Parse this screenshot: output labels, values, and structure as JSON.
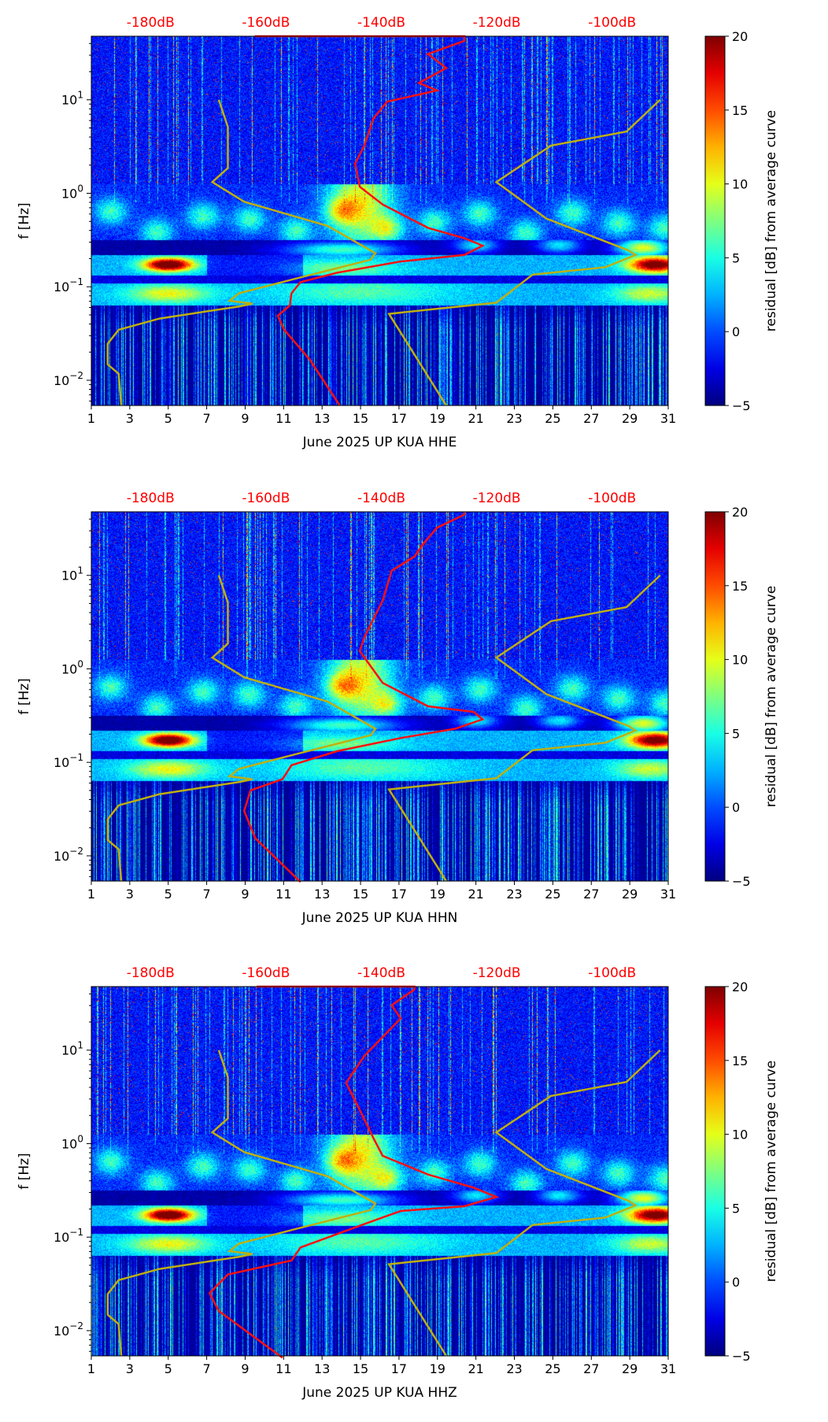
{
  "chart_data": {
    "type": "heatmap",
    "x_axis": {
      "ticks": [
        1,
        3,
        5,
        7,
        9,
        11,
        13,
        15,
        17,
        19,
        21,
        23,
        25,
        27,
        29,
        31
      ],
      "range_days": [
        1,
        31
      ]
    },
    "y_axis": {
      "label": "f [Hz]",
      "scale": "log",
      "log10_range": [
        -2.27,
        1.68
      ],
      "ticks": [
        {
          "exp": "1",
          "log": 1
        },
        {
          "exp": "0",
          "log": 0
        },
        {
          "exp": "−1",
          "log": -1
        },
        {
          "exp": "−2",
          "log": -2
        }
      ]
    },
    "top_axis": {
      "color": "#ff0000",
      "labels": [
        {
          "text": "-180dB",
          "db": -180
        },
        {
          "text": "-160dB",
          "db": -160
        },
        {
          "text": "-140dB",
          "db": -140
        },
        {
          "text": "-120dB",
          "db": -120
        },
        {
          "text": "-100dB",
          "db": -100
        }
      ],
      "db_at_day_4_08": -180,
      "db_per_day": 3.333
    },
    "colorbar": {
      "label": "residual [dB] from average curve",
      "range": [
        -5,
        20
      ],
      "ticks": [
        "20",
        "15",
        "10",
        "5",
        "0",
        "−5"
      ],
      "tick_values": [
        20,
        15,
        10,
        5,
        0,
        -5
      ],
      "colormap": "jet"
    },
    "model_color": "#bfaf10",
    "psd_color": "#ff1010",
    "nlnm": [
      [
        7.63,
        1.0
      ],
      [
        8.1,
        0.71
      ],
      [
        8.1,
        0.27
      ],
      [
        7.29,
        0.12
      ],
      [
        8.95,
        -0.09
      ],
      [
        13.3,
        -0.35
      ],
      [
        15.77,
        -0.64
      ],
      [
        15.53,
        -0.71
      ],
      [
        11.88,
        -0.9
      ],
      [
        8.67,
        -1.07
      ],
      [
        8.19,
        -1.15
      ],
      [
        9.38,
        -1.18
      ],
      [
        8.71,
        -1.21
      ],
      [
        4.55,
        -1.34
      ],
      [
        2.42,
        -1.46
      ],
      [
        1.85,
        -1.61
      ],
      [
        1.85,
        -1.83
      ],
      [
        2.42,
        -1.93
      ],
      [
        2.56,
        -2.27
      ]
    ],
    "nhnm": [
      [
        30.58,
        1.0
      ],
      [
        28.83,
        0.66
      ],
      [
        24.9,
        0.51
      ],
      [
        22.06,
        0.12
      ],
      [
        24.66,
        -0.27
      ],
      [
        28.92,
        -0.61
      ],
      [
        29.3,
        -0.66
      ],
      [
        27.74,
        -0.79
      ],
      [
        23.95,
        -0.87
      ],
      [
        22.06,
        -1.17
      ],
      [
        16.48,
        -1.29
      ],
      [
        19.46,
        -2.27
      ]
    ],
    "panels": [
      {
        "xlabel": "June 2025 UP KUA  HHE",
        "seed": 11,
        "psd": [
          [
            9.5,
            1.68
          ],
          [
            20.4,
            1.68
          ],
          [
            20.4,
            1.63
          ],
          [
            18.51,
            1.49
          ],
          [
            19.46,
            1.34
          ],
          [
            18.04,
            1.18
          ],
          [
            18.98,
            1.1
          ],
          [
            16.38,
            0.98
          ],
          [
            15.67,
            0.8
          ],
          [
            15.2,
            0.51
          ],
          [
            14.72,
            0.32
          ],
          [
            14.96,
            0.07
          ],
          [
            16.15,
            -0.12
          ],
          [
            18.51,
            -0.37
          ],
          [
            20.4,
            -0.48
          ],
          [
            21.35,
            -0.56
          ],
          [
            20.4,
            -0.66
          ],
          [
            17.09,
            -0.73
          ],
          [
            13.78,
            -0.85
          ],
          [
            11.88,
            -0.95
          ],
          [
            11.41,
            -1.07
          ],
          [
            11.32,
            -1.2
          ],
          [
            10.7,
            -1.31
          ],
          [
            11.03,
            -1.46
          ],
          [
            12.36,
            -1.78
          ],
          [
            13.92,
            -2.27
          ]
        ]
      },
      {
        "xlabel": "June 2025 UP KUA  HHN",
        "seed": 23,
        "psd": [
          [
            20.4,
            1.68
          ],
          [
            20.4,
            1.65
          ],
          [
            18.98,
            1.51
          ],
          [
            18.27,
            1.34
          ],
          [
            17.8,
            1.2
          ],
          [
            16.62,
            1.05
          ],
          [
            16.15,
            0.73
          ],
          [
            15.2,
            0.34
          ],
          [
            14.96,
            0.19
          ],
          [
            16.15,
            -0.15
          ],
          [
            18.51,
            -0.4
          ],
          [
            20.88,
            -0.46
          ],
          [
            21.35,
            -0.54
          ],
          [
            19.93,
            -0.64
          ],
          [
            17.09,
            -0.74
          ],
          [
            13.78,
            -0.88
          ],
          [
            11.41,
            -1.03
          ],
          [
            10.94,
            -1.18
          ],
          [
            9.28,
            -1.3
          ],
          [
            8.95,
            -1.52
          ],
          [
            9.52,
            -1.81
          ],
          [
            11.88,
            -2.28
          ]
        ]
      },
      {
        "xlabel": "June 2025 UP KUA  HHZ",
        "seed": 37,
        "psd": [
          [
            9.6,
            1.68
          ],
          [
            17.8,
            1.68
          ],
          [
            17.8,
            1.65
          ],
          [
            16.62,
            1.48
          ],
          [
            17.09,
            1.34
          ],
          [
            15.2,
            0.94
          ],
          [
            14.25,
            0.65
          ],
          [
            14.96,
            0.36
          ],
          [
            15.67,
            0.06
          ],
          [
            16.15,
            -0.13
          ],
          [
            18.51,
            -0.33
          ],
          [
            20.88,
            -0.47
          ],
          [
            22.06,
            -0.57
          ],
          [
            20.4,
            -0.67
          ],
          [
            17.09,
            -0.72
          ],
          [
            15.2,
            -0.86
          ],
          [
            11.88,
            -1.11
          ],
          [
            11.41,
            -1.25
          ],
          [
            8.1,
            -1.4
          ],
          [
            7.15,
            -1.6
          ],
          [
            7.63,
            -1.79
          ],
          [
            10.94,
            -2.29
          ]
        ]
      }
    ]
  }
}
